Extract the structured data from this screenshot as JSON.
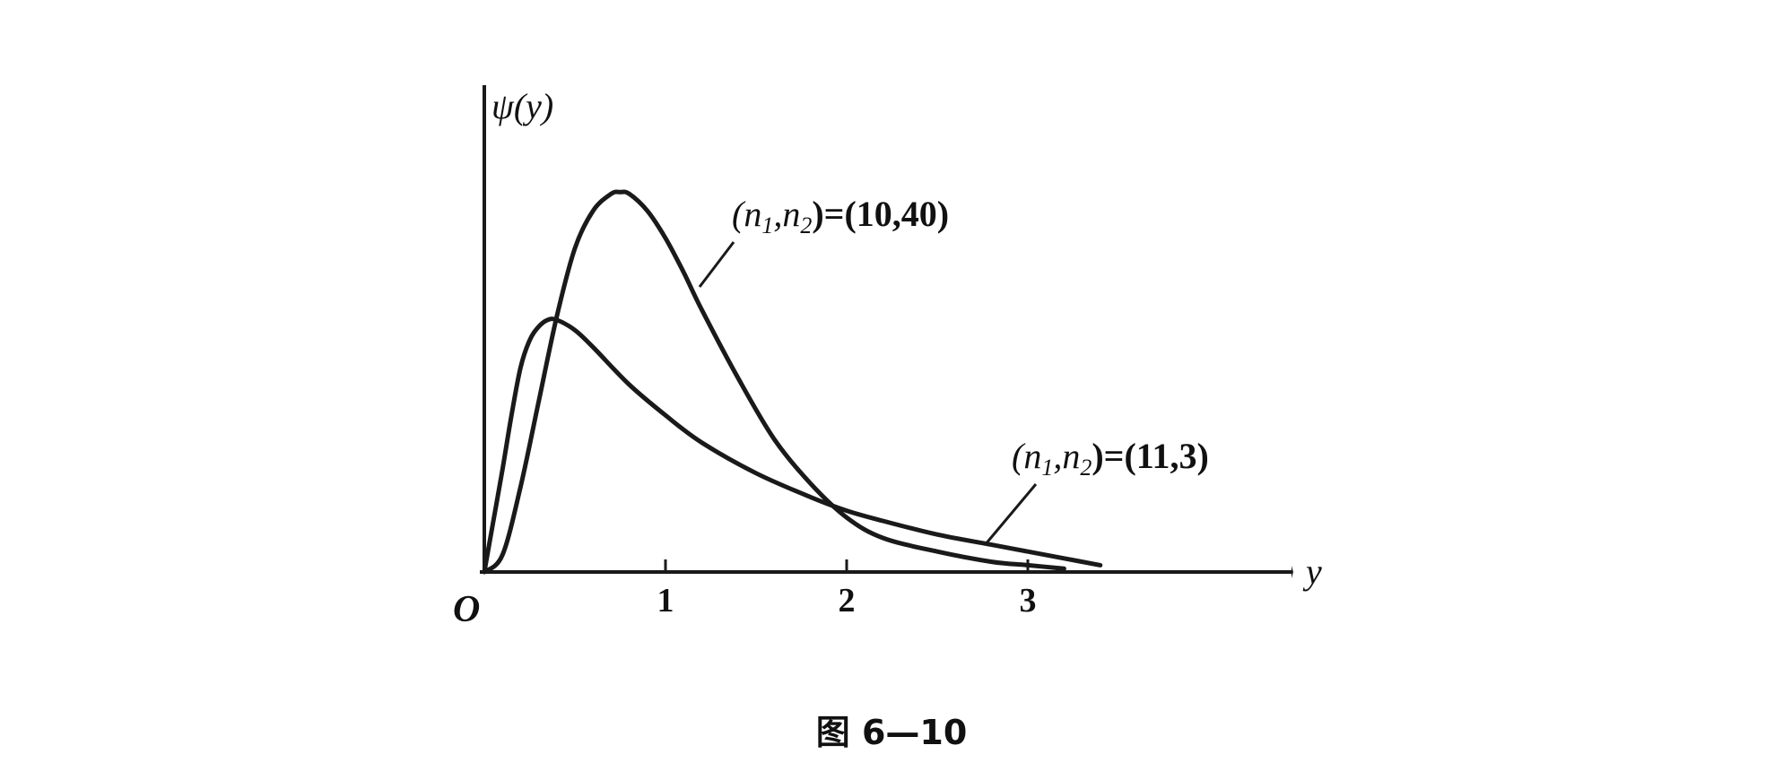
{
  "chart_data": {
    "type": "line",
    "title": "",
    "caption": "图 6—10",
    "ylabel": "ψ(y)",
    "xlabel": "y",
    "origin_label": "O",
    "xlim": [
      0,
      3.4
    ],
    "ylim": [
      0,
      1.2
    ],
    "xticks": [
      1,
      2,
      3
    ],
    "grid": false,
    "series": [
      {
        "label_parts": {
          "open": "(n",
          "sub1": "1",
          "mid": ",n",
          "sub2": "2",
          "close": ")=(10,40)"
        },
        "x": [
          0,
          0.1,
          0.2,
          0.3,
          0.4,
          0.5,
          0.6,
          0.7,
          0.75,
          0.8,
          0.9,
          1.0,
          1.1,
          1.2,
          1.4,
          1.6,
          1.8,
          2.0,
          2.2,
          2.5,
          2.8,
          3.0,
          3.2
        ],
        "y": [
          0,
          0.05,
          0.25,
          0.5,
          0.75,
          0.95,
          1.06,
          1.11,
          1.115,
          1.11,
          1.06,
          0.98,
          0.88,
          0.77,
          0.57,
          0.39,
          0.26,
          0.16,
          0.1,
          0.06,
          0.03,
          0.02,
          0.01
        ]
      },
      {
        "label_parts": {
          "open": "(n",
          "sub1": "1",
          "mid": ",n",
          "sub2": "2",
          "close": ")=(11,3)"
        },
        "x": [
          0,
          0.05,
          0.1,
          0.15,
          0.2,
          0.25,
          0.3,
          0.35,
          0.4,
          0.5,
          0.6,
          0.8,
          1.0,
          1.2,
          1.5,
          1.8,
          2.0,
          2.2,
          2.5,
          2.8,
          3.0,
          3.2,
          3.4
        ],
        "y": [
          0,
          0.15,
          0.3,
          0.46,
          0.6,
          0.68,
          0.72,
          0.74,
          0.74,
          0.71,
          0.66,
          0.55,
          0.46,
          0.38,
          0.29,
          0.22,
          0.18,
          0.15,
          0.11,
          0.08,
          0.06,
          0.04,
          0.02
        ]
      }
    ]
  }
}
